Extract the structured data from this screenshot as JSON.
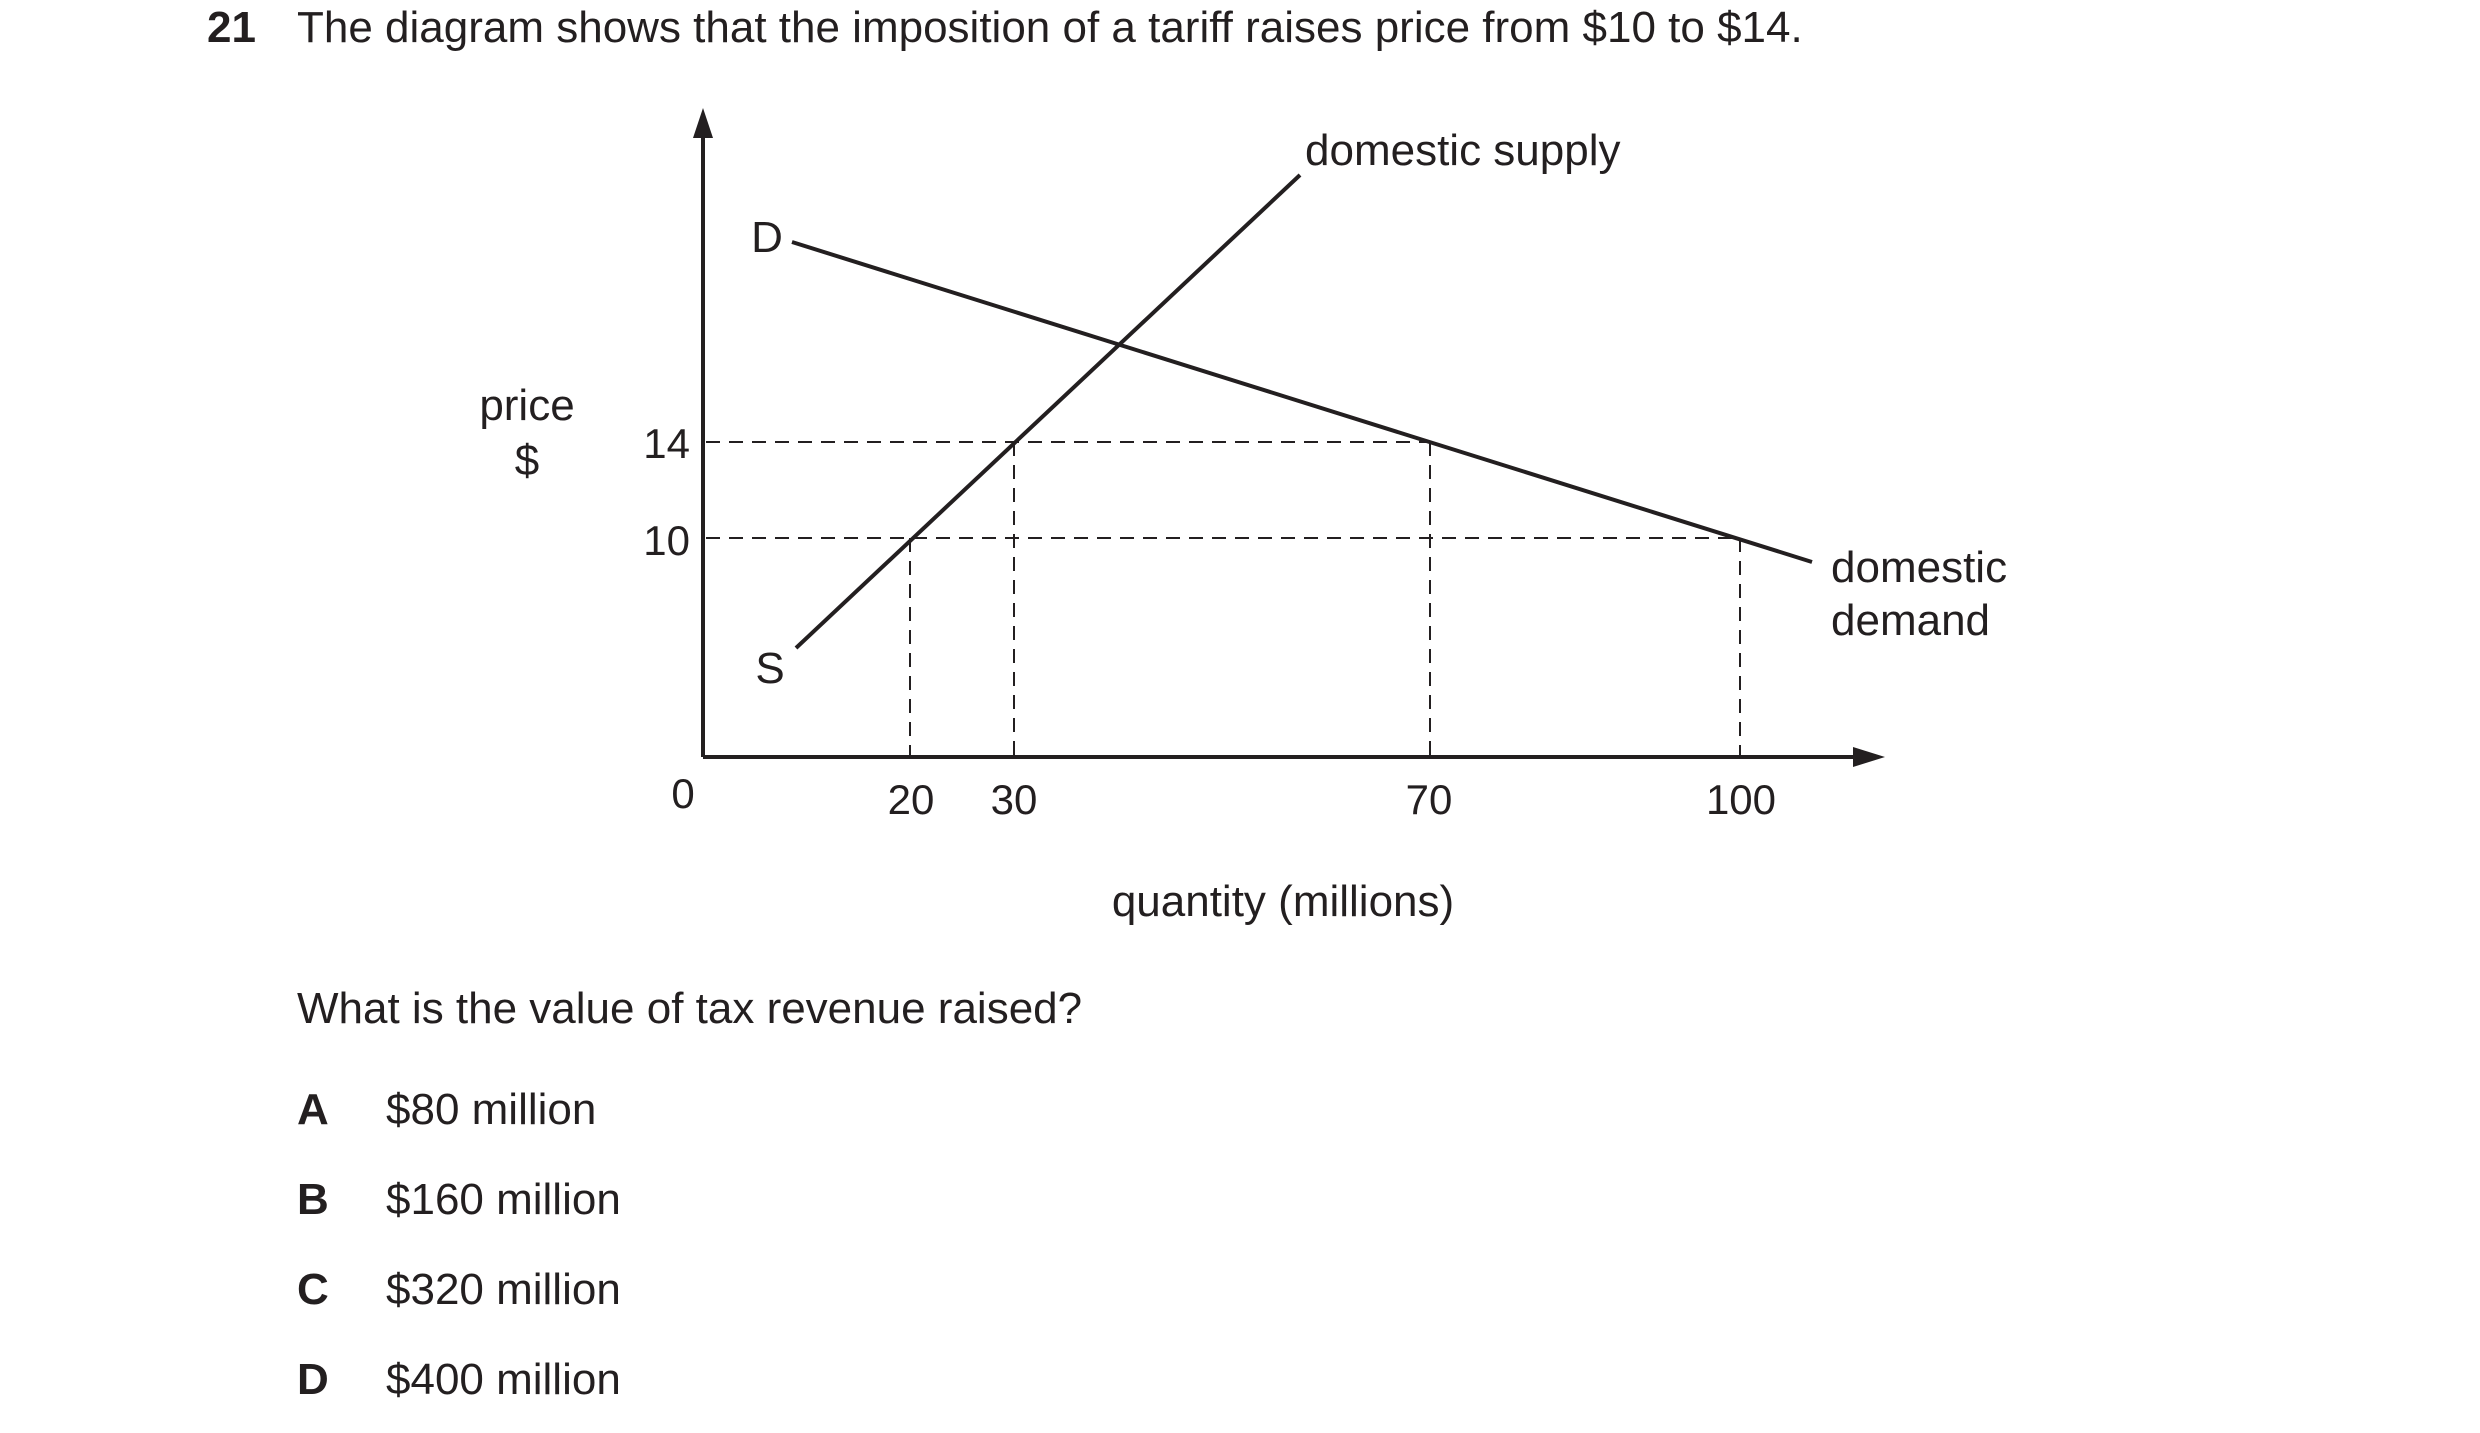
{
  "question": {
    "number": "21",
    "text": "The diagram shows that the imposition of a tariff raises price from $10 to $14.",
    "prompt": "What is the value of tax revenue raised?",
    "options": [
      {
        "letter": "A",
        "text": "$80 million"
      },
      {
        "letter": "B",
        "text": "$160 million"
      },
      {
        "letter": "C",
        "text": "$320 million"
      },
      {
        "letter": "D",
        "text": "$400 million"
      }
    ]
  },
  "diagram": {
    "y_label_line1": "price",
    "y_label_line2": "$",
    "x_label": "quantity (millions)",
    "origin_label": "0",
    "y_ticks": [
      "14",
      "10"
    ],
    "x_ticks": [
      "20",
      "30",
      "70",
      "100"
    ],
    "demand_letter": "D",
    "supply_letter": "S",
    "supply_label": "domestic supply",
    "demand_label_line1": "domestic",
    "demand_label_line2": "demand",
    "prices": {
      "world": 10,
      "with_tariff": 14
    },
    "quantities": {
      "supply_at_10": 20,
      "supply_at_14": 30,
      "demand_at_14": 70,
      "demand_at_10": 100
    },
    "line_color": "#231f20"
  }
}
